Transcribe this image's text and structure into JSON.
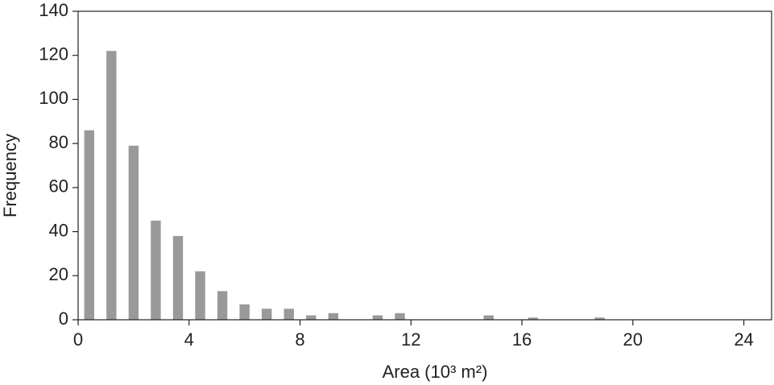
{
  "chart_data": {
    "type": "histogram",
    "x_label": "Area (10³ m²)",
    "y_label": "Frequency",
    "bins": [
      0,
      0.8,
      1.6,
      2.4,
      3.2,
      4,
      4.8,
      5.6,
      6.4,
      7.2,
      8,
      8.8,
      9.6,
      10.4,
      11.2,
      12,
      12.8,
      13.6,
      14.4,
      15.2,
      16,
      16.8,
      17.6,
      18.4,
      19.2,
      20,
      20.8,
      21.6,
      22.4,
      23.2,
      24,
      24.8
    ],
    "values": [
      86,
      122,
      79,
      45,
      38,
      22,
      13,
      7,
      5,
      5,
      2,
      3,
      0,
      2,
      3,
      0,
      0,
      0,
      2,
      0,
      1,
      0,
      0,
      1,
      0,
      0,
      0,
      0,
      0,
      0,
      0
    ],
    "color": "#999999",
    "xlim": [
      0,
      25
    ],
    "ylim": [
      0,
      140
    ],
    "xticks": [
      0,
      4,
      8,
      12,
      16,
      20,
      24
    ],
    "yticks": [
      0,
      20,
      40,
      60,
      80,
      100,
      120,
      140
    ]
  }
}
